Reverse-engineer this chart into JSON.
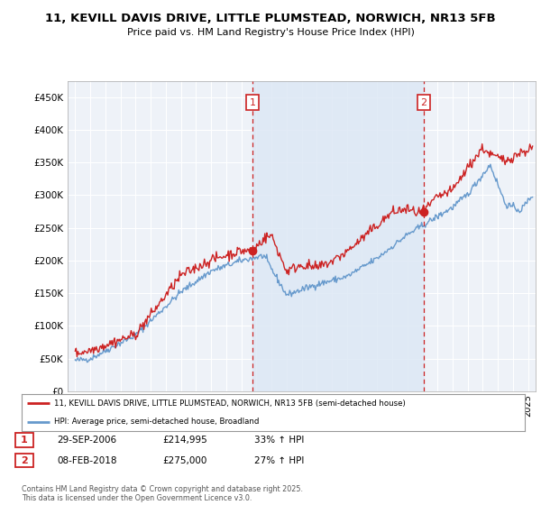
{
  "title": "11, KEVILL DAVIS DRIVE, LITTLE PLUMSTEAD, NORWICH, NR13 5FB",
  "subtitle": "Price paid vs. HM Land Registry's House Price Index (HPI)",
  "background_color": "#ffffff",
  "chart_bg_color": "#f0f4fa",
  "grid_color": "#cccccc",
  "shade_color": "#dde8f5",
  "sale1_date_x": 2006.75,
  "sale1_price": 214995,
  "sale2_date_x": 2018.1,
  "sale2_price": 275000,
  "legend_line1": "11, KEVILL DAVIS DRIVE, LITTLE PLUMSTEAD, NORWICH, NR13 5FB (semi-detached house)",
  "legend_line2": "HPI: Average price, semi-detached house, Broadland",
  "table_row1": [
    "1",
    "29-SEP-2006",
    "£214,995",
    "33% ↑ HPI"
  ],
  "table_row2": [
    "2",
    "08-FEB-2018",
    "£275,000",
    "27% ↑ HPI"
  ],
  "footer": "Contains HM Land Registry data © Crown copyright and database right 2025.\nThis data is licensed under the Open Government Licence v3.0.",
  "hpi_color": "#6699cc",
  "price_color": "#cc2222",
  "vline_color": "#cc2222",
  "ylim": [
    0,
    475000
  ],
  "xlim_start": 1994.5,
  "xlim_end": 2025.5
}
